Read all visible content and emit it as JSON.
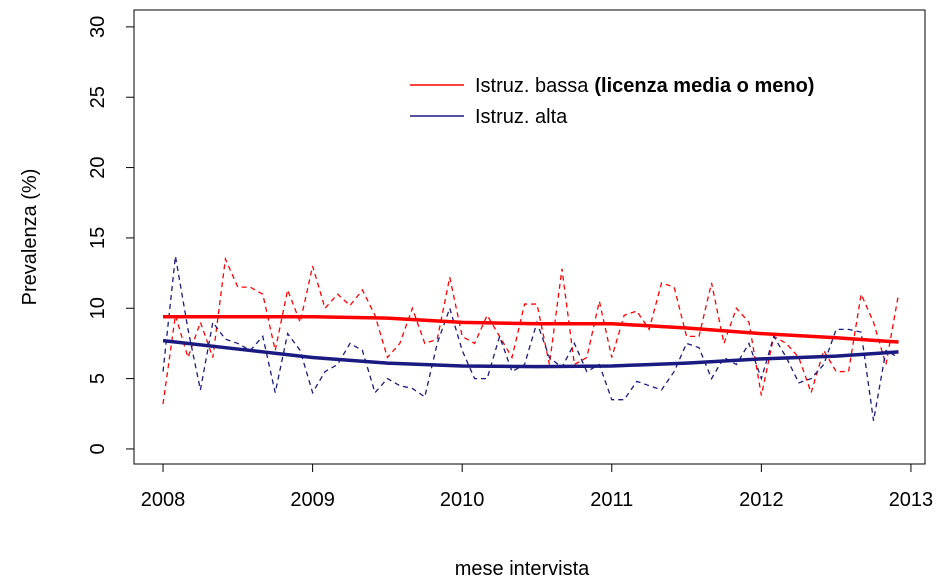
{
  "chart_data": {
    "type": "line",
    "x_label": "mese intervista",
    "y_label": "Prevalenza (%)",
    "x": [
      2008,
      2008.083,
      2008.167,
      2008.25,
      2008.333,
      2008.417,
      2008.5,
      2008.583,
      2008.667,
      2008.75,
      2008.833,
      2008.917,
      2009,
      2009.083,
      2009.167,
      2009.25,
      2009.333,
      2009.417,
      2009.5,
      2009.583,
      2009.667,
      2009.75,
      2009.833,
      2009.917,
      2010,
      2010.083,
      2010.167,
      2010.25,
      2010.333,
      2010.417,
      2010.5,
      2010.583,
      2010.667,
      2010.75,
      2010.833,
      2010.917,
      2011,
      2011.083,
      2011.167,
      2011.25,
      2011.333,
      2011.417,
      2011.5,
      2011.583,
      2011.667,
      2011.75,
      2011.833,
      2011.917,
      2012,
      2012.083,
      2012.167,
      2012.25,
      2012.333,
      2012.417,
      2012.5,
      2012.583,
      2012.667,
      2012.75,
      2012.833,
      2012.917
    ],
    "series": [
      {
        "color": "#ff0000",
        "style": "dashed",
        "values": [
          3.2,
          9.5,
          6.5,
          9.0,
          6.5,
          13.5,
          11.5,
          11.5,
          11.0,
          7.0,
          11.3,
          9.0,
          13.0,
          10.0,
          11.0,
          10.2,
          11.3,
          9.5,
          6.5,
          7.5,
          10.0,
          7.5,
          7.8,
          12.2,
          8.0,
          7.5,
          9.5,
          8.0,
          6.5,
          10.3,
          10.3,
          6.0,
          12.8,
          6.0,
          6.5,
          10.5,
          6.5,
          9.5,
          9.8,
          8.5,
          11.8,
          11.5,
          8.0,
          8.0,
          11.8,
          7.5,
          10.0,
          9.0,
          3.8,
          8.0,
          7.5,
          6.5,
          4.0,
          7.0,
          5.5,
          5.5,
          11.0,
          9.0,
          6.0,
          11.0
        ]
      },
      {
        "color": "#1a1a80",
        "style": "dashed",
        "values": [
          5.5,
          13.7,
          8.5,
          4.2,
          9.0,
          7.8,
          7.5,
          7.0,
          8.0,
          4.0,
          8.2,
          7.0,
          4.0,
          5.5,
          6.0,
          7.5,
          7.0,
          4.0,
          5.0,
          4.5,
          4.3,
          3.7,
          7.5,
          10.0,
          7.0,
          5.0,
          5.0,
          8.0,
          5.5,
          6.0,
          9.0,
          6.5,
          5.8,
          7.5,
          5.5,
          6.0,
          3.5,
          3.5,
          4.8,
          4.5,
          4.2,
          5.5,
          7.5,
          7.2,
          5.0,
          6.5,
          6.0,
          7.5,
          5.0,
          8.0,
          6.5,
          4.7,
          5.0,
          6.0,
          8.5,
          8.5,
          8.3,
          2.0,
          7.0,
          6.5
        ]
      },
      {
        "color": "#ff0000",
        "style": "solid",
        "x": [
          2008,
          2008.5,
          2009,
          2009.5,
          2010,
          2010.5,
          2011,
          2011.5,
          2012,
          2012.5,
          2012.917
        ],
        "values": [
          9.4,
          9.4,
          9.4,
          9.3,
          9.0,
          8.9,
          8.9,
          8.6,
          8.2,
          7.9,
          7.6
        ]
      },
      {
        "color": "#1a1a80",
        "style": "solid",
        "x": [
          2008,
          2008.5,
          2009,
          2009.5,
          2010,
          2010.5,
          2011,
          2011.5,
          2012,
          2012.5,
          2012.917
        ],
        "values": [
          7.7,
          7.1,
          6.5,
          6.1,
          5.9,
          5.85,
          5.9,
          6.1,
          6.4,
          6.6,
          6.9
        ]
      }
    ],
    "legend": [
      {
        "label": "Istruz. bassa",
        "label_bold": "(licenza media o meno)",
        "color": "#ff0000"
      },
      {
        "label": "Istruz. alta",
        "color": "#1a1a80"
      }
    ],
    "xlim": [
      2007.806,
      2013.094
    ],
    "xticks": [
      2008,
      2009,
      2010,
      2011,
      2012,
      2013
    ],
    "ylim": [
      -1.07,
      31.2
    ],
    "yticks": [
      0,
      5,
      10,
      15,
      20,
      25,
      30
    ]
  }
}
